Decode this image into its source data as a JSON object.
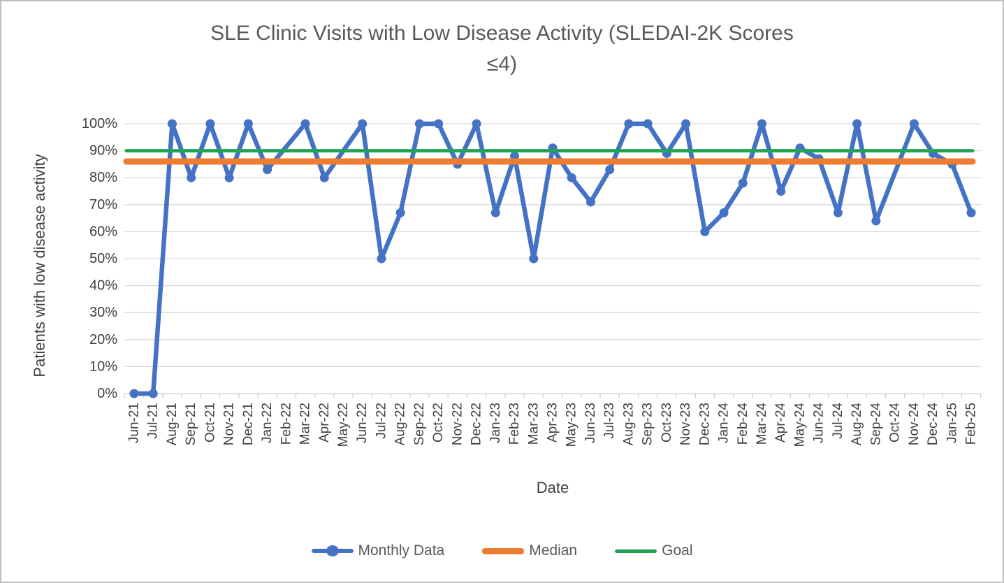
{
  "title": "SLE Clinic Visits with Low Disease Activity (SLEDAI-2K Scores\n≤4)",
  "colors": {
    "monthly_blue": "#4472C4",
    "median_orange": "#ED7D31",
    "goal_green": "#23A455",
    "gridline": "#D9D9D9",
    "axis_line": "#CFCFCF",
    "title_text": "#595959",
    "axis_text": "#404040",
    "border": "#BFBFBF"
  },
  "chart_data": {
    "type": "line",
    "title": "SLE Clinic Visits with Low Disease Activity (SLEDAI-2K Scores ≤4)",
    "xlabel": "Date",
    "ylabel": "Patients with low disease activity",
    "ylim": [
      0,
      100
    ],
    "grid": true,
    "legend_position": "bottom",
    "ytick_labels": [
      "0%",
      "10%",
      "20%",
      "30%",
      "40%",
      "50%",
      "60%",
      "70%",
      "80%",
      "90%",
      "100%"
    ],
    "categories": [
      "Jun-21",
      "Jul-21",
      "Aug-21",
      "Sep-21",
      "Oct-21",
      "Nov-21",
      "Dec-21",
      "Jan-22",
      "Feb-22",
      "Mar-22",
      "Apr-22",
      "May-22",
      "Jun-22",
      "Jul-22",
      "Aug-22",
      "Sep-22",
      "Oct-22",
      "Nov-22",
      "Dec-22",
      "Jan-23",
      "Feb-23",
      "Mar-23",
      "Apr-23",
      "May-23",
      "Jun-23",
      "Jul-23",
      "Aug-23",
      "Sep-23",
      "Oct-23",
      "Nov-23",
      "Dec-23",
      "Jan-24",
      "Feb-24",
      "Mar-24",
      "Apr-24",
      "May-24",
      "Jun-24",
      "Jul-24",
      "Aug-24",
      "Sep-24",
      "Oct-24",
      "Nov-24",
      "Dec-24",
      "Jan-25",
      "Feb-25"
    ],
    "series": [
      {
        "name": "Monthly Data",
        "kind": "line-markers",
        "color": "#4472C4",
        "thickness": 6.5,
        "marker_radius": 6.5,
        "values": [
          0,
          0,
          100,
          80,
          100,
          80,
          100,
          83,
          null,
          100,
          80,
          null,
          100,
          50,
          67,
          100,
          100,
          85,
          100,
          67,
          88,
          50,
          91,
          80,
          71,
          83,
          100,
          100,
          89,
          100,
          60,
          67,
          78,
          100,
          75,
          91,
          87,
          67,
          100,
          64,
          null,
          100,
          89,
          85,
          67
        ]
      },
      {
        "name": "Median",
        "kind": "hline",
        "color": "#ED7D31",
        "thickness": 9,
        "value": 86
      },
      {
        "name": "Goal",
        "kind": "hline",
        "color": "#23A455",
        "thickness": 5,
        "value": 90
      }
    ]
  }
}
